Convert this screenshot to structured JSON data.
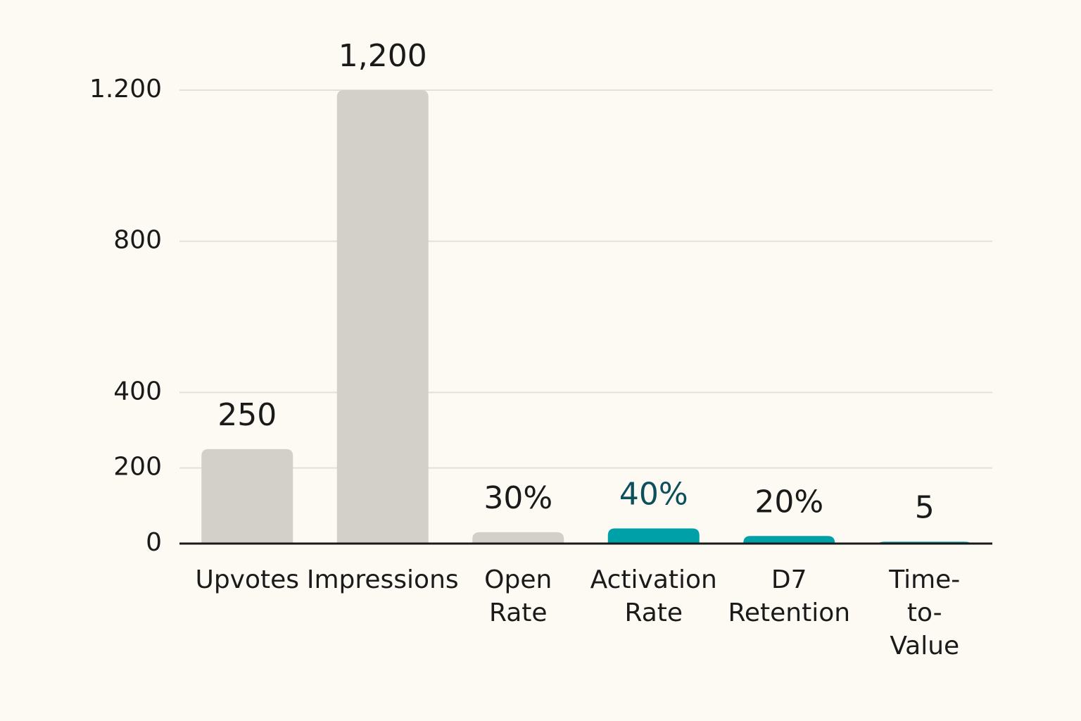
{
  "chart_data": {
    "type": "bar",
    "categories": [
      "Upvotes",
      "Impressions",
      "Open Rate",
      "Activation Rate",
      "D7 Retention",
      "Time-to-Value"
    ],
    "values": [
      250,
      1200,
      30,
      40,
      20,
      5
    ],
    "value_labels": [
      "250",
      "1,200",
      "30%",
      "40%",
      "20%",
      "5"
    ],
    "colors": [
      "#d3d0ca",
      "#d3d0ca",
      "#d3d0ca",
      "#00a0a8",
      "#00a0a8",
      "#00a0a8"
    ],
    "label_colors": [
      "#1a1a1a",
      "#1a1a1a",
      "#1a1a1a",
      "#0d4f5c",
      "#1a1a1a",
      "#1a1a1a"
    ],
    "ylim": [
      0,
      1200
    ],
    "yticks": [
      0,
      200,
      400,
      800,
      {
        "value": 1200,
        "label": "1.200"
      }
    ],
    "grid": true
  }
}
